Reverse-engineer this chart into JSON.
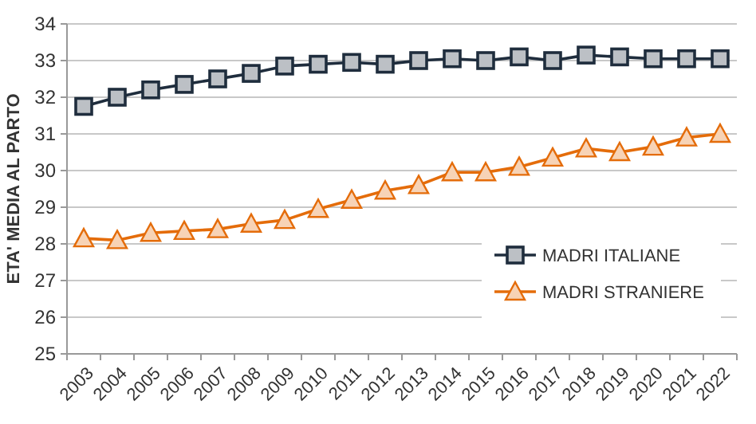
{
  "chart_data": {
    "type": "line",
    "ylabel": "ETA' MEDIA AL PARTO",
    "categories": [
      "2003",
      "2004",
      "2005",
      "2006",
      "2007",
      "2008",
      "2009",
      "2010",
      "2011",
      "2012",
      "2013",
      "2014",
      "2015",
      "2016",
      "2017",
      "2018",
      "2019",
      "2020",
      "2021",
      "2022"
    ],
    "series": [
      {
        "name": "MADRI ITALIANE",
        "color": "#1f2d3d",
        "marker": "square",
        "values": [
          31.75,
          32.0,
          32.2,
          32.35,
          32.5,
          32.65,
          32.85,
          32.9,
          32.95,
          32.9,
          33.0,
          33.05,
          33.0,
          33.1,
          33.0,
          33.15,
          33.1,
          33.05,
          33.05,
          33.05
        ]
      },
      {
        "name": "MADRI STRANIERE",
        "color": "#e46c0a",
        "marker": "triangle",
        "values": [
          28.15,
          28.1,
          28.3,
          28.35,
          28.4,
          28.55,
          28.65,
          28.95,
          29.2,
          29.45,
          29.6,
          29.95,
          29.95,
          30.1,
          30.35,
          30.6,
          30.5,
          30.65,
          30.9,
          31.0
        ]
      }
    ],
    "ylim": [
      25,
      34
    ],
    "yticks": [
      25,
      26,
      27,
      28,
      29,
      30,
      31,
      32,
      33,
      34
    ],
    "grid": "y",
    "legend": "bottom right"
  }
}
